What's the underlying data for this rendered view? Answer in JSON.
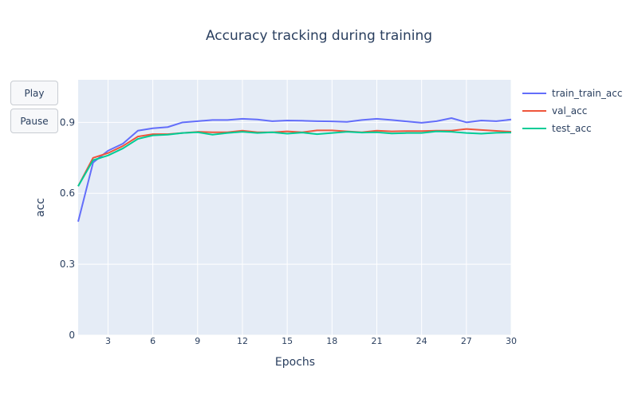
{
  "chart_data": {
    "type": "line",
    "title": "Accuracy tracking during training",
    "xlabel": "Epochs",
    "ylabel": "acc",
    "xlim": [
      1,
      30
    ],
    "ylim": [
      0,
      1.08
    ],
    "x_ticks": [
      "3",
      "6",
      "9",
      "12",
      "15",
      "18",
      "21",
      "24",
      "27",
      "30"
    ],
    "y_ticks": [
      "0",
      "0.3",
      "0.6",
      "0.9"
    ],
    "grid": true,
    "legend_position": "right",
    "x": [
      1,
      2,
      3,
      4,
      5,
      6,
      7,
      8,
      9,
      10,
      11,
      12,
      13,
      14,
      15,
      16,
      17,
      18,
      19,
      20,
      21,
      22,
      23,
      24,
      25,
      26,
      27,
      28,
      29,
      30
    ],
    "series": [
      {
        "name": "train_train_acc",
        "color": "#636efa",
        "values": [
          0.48,
          0.73,
          0.78,
          0.81,
          0.865,
          0.875,
          0.88,
          0.9,
          0.905,
          0.91,
          0.91,
          0.915,
          0.912,
          0.905,
          0.908,
          0.907,
          0.905,
          0.904,
          0.902,
          0.91,
          0.915,
          0.91,
          0.904,
          0.898,
          0.905,
          0.918,
          0.9,
          0.908,
          0.905,
          0.912
        ]
      },
      {
        "name": "val_acc",
        "color": "#ef553b",
        "values": [
          0.63,
          0.75,
          0.77,
          0.8,
          0.84,
          0.85,
          0.85,
          0.855,
          0.86,
          0.858,
          0.858,
          0.865,
          0.858,
          0.858,
          0.862,
          0.858,
          0.866,
          0.866,
          0.862,
          0.858,
          0.865,
          0.862,
          0.863,
          0.863,
          0.865,
          0.865,
          0.872,
          0.868,
          0.864,
          0.86
        ]
      },
      {
        "name": "test_acc",
        "color": "#00cc96",
        "values": [
          0.63,
          0.74,
          0.76,
          0.79,
          0.83,
          0.845,
          0.848,
          0.855,
          0.858,
          0.848,
          0.855,
          0.86,
          0.855,
          0.858,
          0.852,
          0.857,
          0.85,
          0.855,
          0.86,
          0.857,
          0.858,
          0.853,
          0.855,
          0.855,
          0.862,
          0.86,
          0.855,
          0.852,
          0.856,
          0.857
        ]
      }
    ]
  },
  "controls": {
    "play_label": "Play",
    "pause_label": "Pause"
  }
}
